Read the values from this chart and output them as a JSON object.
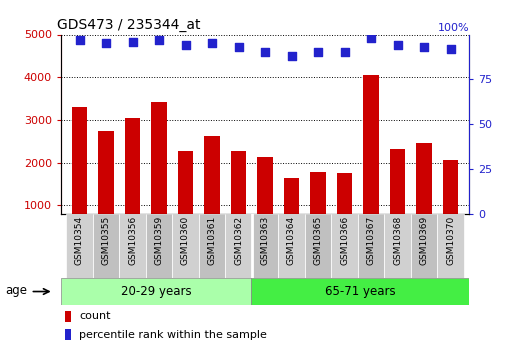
{
  "title": "GDS473 / 235344_at",
  "categories": [
    "GSM10354",
    "GSM10355",
    "GSM10356",
    "GSM10359",
    "GSM10360",
    "GSM10361",
    "GSM10362",
    "GSM10363",
    "GSM10364",
    "GSM10365",
    "GSM10366",
    "GSM10367",
    "GSM10368",
    "GSM10369",
    "GSM10370"
  ],
  "counts": [
    3300,
    2750,
    3050,
    3420,
    2270,
    2620,
    2280,
    2130,
    1640,
    1770,
    1760,
    4050,
    2310,
    2450,
    2070
  ],
  "percentile_ranks": [
    97,
    95,
    96,
    97,
    94,
    95,
    93,
    90,
    88,
    90,
    90,
    98,
    94,
    93,
    92
  ],
  "group1_label": "20-29 years",
  "group2_label": "65-71 years",
  "group1_count": 7,
  "group2_count": 8,
  "bar_color": "#cc0000",
  "dot_color": "#2222cc",
  "ylim_left": [
    800,
    5000
  ],
  "ylim_right": [
    0,
    100
  ],
  "yticks_left": [
    1000,
    2000,
    3000,
    4000,
    5000
  ],
  "yticks_right": [
    0,
    25,
    50,
    75
  ],
  "grid_color": "#000000",
  "plot_bg": "#ffffff",
  "cell_bg_light": "#d0d0d0",
  "cell_bg_dark": "#c0c0c0",
  "group1_bg": "#aaffaa",
  "group2_bg": "#44ee44",
  "age_label": "age",
  "legend_count_label": "count",
  "legend_pct_label": "percentile rank within the sample"
}
